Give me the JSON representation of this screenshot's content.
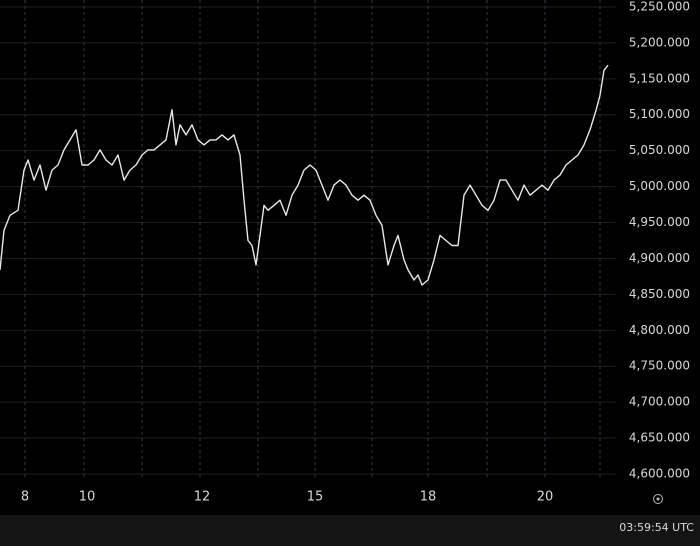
{
  "chart_data": {
    "type": "line",
    "color": "#e8e8e8",
    "x": [
      0,
      2,
      5,
      9,
      12,
      14,
      17,
      20,
      23,
      26,
      29,
      32,
      35,
      38,
      41,
      44,
      47,
      50,
      53,
      56,
      59,
      62,
      65,
      68,
      71,
      74,
      77,
      80,
      83,
      86,
      88,
      90,
      93,
      96,
      99,
      102,
      105,
      108,
      111,
      114,
      117,
      120,
      122,
      124,
      126,
      128,
      130,
      132,
      134,
      137,
      140,
      143,
      146,
      149,
      152,
      155,
      158,
      161,
      164,
      167,
      170,
      173,
      176,
      179,
      182,
      185,
      188,
      191,
      194,
      197,
      199,
      202,
      204,
      207,
      209,
      211,
      214,
      217,
      220,
      223,
      226,
      229,
      232,
      235,
      238,
      241,
      244,
      247,
      250,
      253,
      256,
      259,
      262,
      265,
      268,
      271,
      274,
      277,
      280,
      283,
      286,
      289,
      292,
      295,
      298,
      300,
      302,
      304
    ],
    "values": [
      4884,
      4939,
      4960,
      4967,
      5023,
      5037,
      5009,
      5030,
      4995,
      5023,
      5030,
      5051,
      5065,
      5079,
      5030,
      5030,
      5037,
      5051,
      5037,
      5030,
      5044,
      5009,
      5023,
      5030,
      5044,
      5051,
      5051,
      5058,
      5065,
      5107,
      5058,
      5086,
      5072,
      5086,
      5065,
      5058,
      5065,
      5065,
      5072,
      5065,
      5072,
      5044,
      4981,
      4925,
      4918,
      4891,
      4932,
      4974,
      4967,
      4974,
      4981,
      4960,
      4988,
      5002,
      5023,
      5030,
      5023,
      5002,
      4981,
      5002,
      5009,
      5002,
      4988,
      4981,
      4988,
      4981,
      4960,
      4946,
      4891,
      4918,
      4932,
      4898,
      4884,
      4870,
      4877,
      4863,
      4870,
      4898,
      4932,
      4925,
      4918,
      4918,
      4988,
      5002,
      4988,
      4974,
      4967,
      4981,
      5009,
      5009,
      4995,
      4981,
      5002,
      4988,
      4995,
      5002,
      4995,
      5009,
      5016,
      5030,
      5037,
      5044,
      5058,
      5079,
      5106,
      5127,
      5162,
      5169
    ],
    "xlim": [
      0,
      308
    ],
    "xticks": [
      {
        "value": 12.5,
        "label": "8"
      },
      {
        "value": 43.5,
        "label": "10"
      },
      {
        "value": 101,
        "label": "12"
      },
      {
        "value": 157.5,
        "label": "15"
      },
      {
        "value": 214,
        "label": "18"
      },
      {
        "value": 272.5,
        "label": "20"
      }
    ],
    "xgrid": [
      12.5,
      42,
      71,
      100,
      129,
      157.5,
      186,
      214,
      243.5,
      272.5,
      300
    ],
    "ylim": [
      4591.6,
      5259.7
    ],
    "yticks": [
      {
        "value": 5250,
        "label": "5,250.000"
      },
      {
        "value": 5200,
        "label": "5,200.000"
      },
      {
        "value": 5150,
        "label": "5,150.000"
      },
      {
        "value": 5100,
        "label": "5,100.000"
      },
      {
        "value": 5050,
        "label": "5,050.000"
      },
      {
        "value": 5000,
        "label": "5,000.000"
      },
      {
        "value": 4950,
        "label": "4,950.000"
      },
      {
        "value": 4900,
        "label": "4,900.000"
      },
      {
        "value": 4850,
        "label": "4,850.000"
      },
      {
        "value": 4800,
        "label": "4,800.000"
      },
      {
        "value": 4750,
        "label": "4,750.000"
      },
      {
        "value": 4700,
        "label": "4,700.000"
      },
      {
        "value": 4650,
        "label": "4,650.000"
      },
      {
        "value": 4600,
        "label": "4,600.000"
      }
    ],
    "grid": true,
    "footer": "03:59:54 UTC"
  }
}
